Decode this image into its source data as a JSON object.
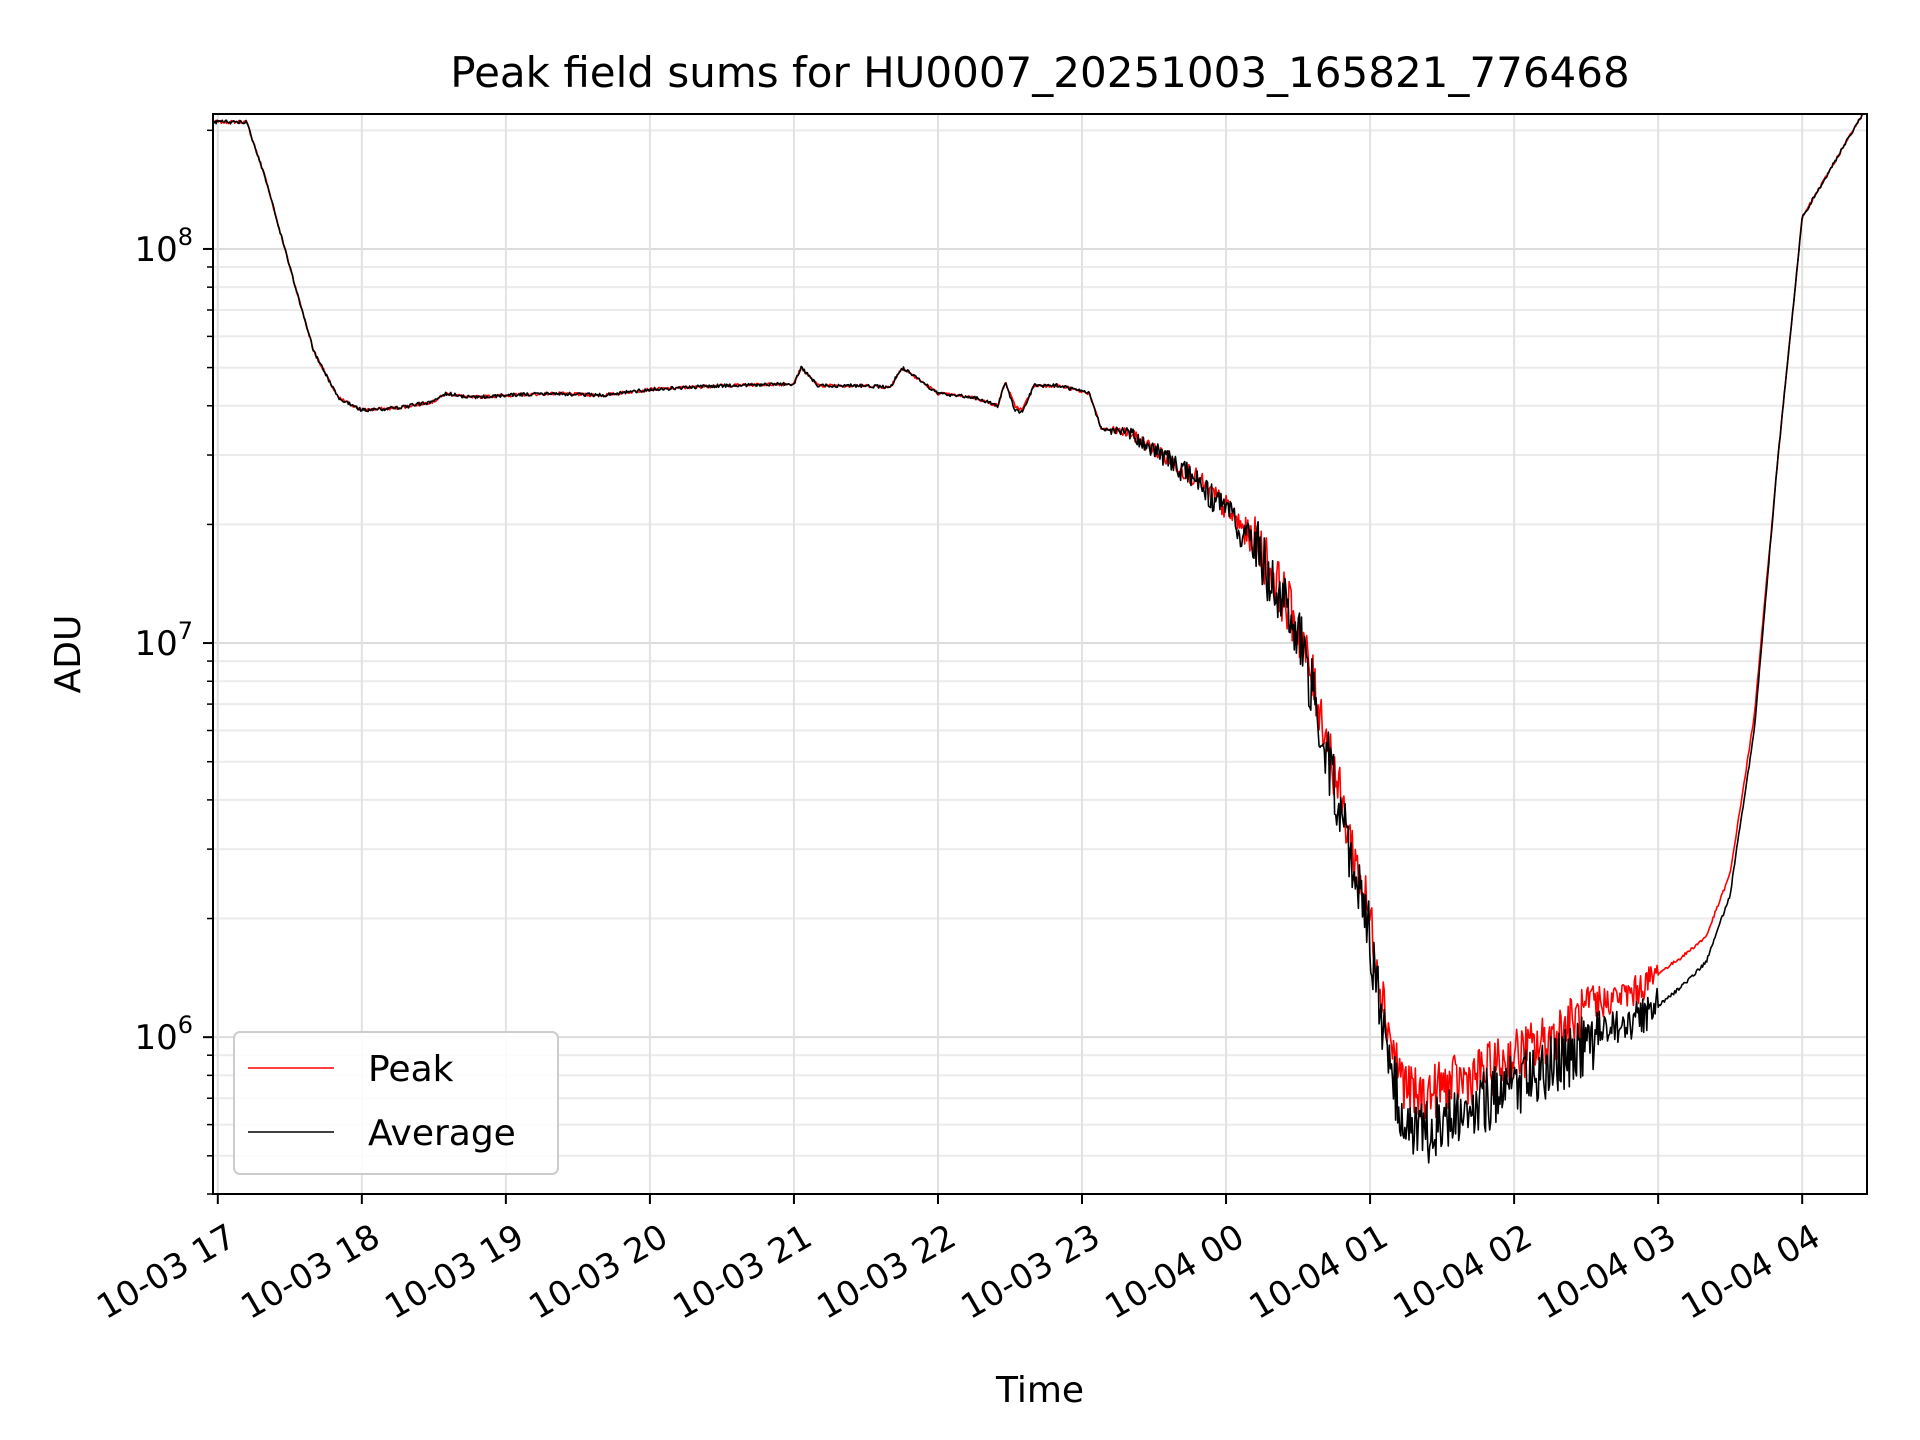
{
  "chart_data": {
    "type": "line",
    "title": "Peak field sums for HU0007_20251003_165821_776468",
    "xlabel": "Time",
    "ylabel": "ADU",
    "yscale": "log",
    "ylim": [
      400000,
      220000000
    ],
    "xlim": [
      "2025-10-03 16:58",
      "2025-10-04 04:27"
    ],
    "grid": true,
    "legend_position": "lower-left",
    "x_ticks": [
      "10-03 17",
      "10-03 18",
      "10-03 19",
      "10-03 20",
      "10-03 21",
      "10-03 22",
      "10-03 23",
      "10-04 00",
      "10-04 01",
      "10-04 02",
      "10-04 03",
      "10-04 04"
    ],
    "y_ticks": [
      {
        "base": "10",
        "exp": "6",
        "value": 1000000
      },
      {
        "base": "10",
        "exp": "7",
        "value": 10000000
      },
      {
        "base": "10",
        "exp": "8",
        "value": 100000000
      }
    ],
    "x": [
      "2025-10-03 16:58",
      "2025-10-03 17:12",
      "2025-10-03 17:20",
      "2025-10-03 17:30",
      "2025-10-03 17:40",
      "2025-10-03 17:50",
      "2025-10-03 18:00",
      "2025-10-03 18:15",
      "2025-10-03 18:30",
      "2025-10-03 18:35",
      "2025-10-03 18:45",
      "2025-10-03 19:00",
      "2025-10-03 19:20",
      "2025-10-03 19:40",
      "2025-10-03 20:00",
      "2025-10-03 20:30",
      "2025-10-03 21:00",
      "2025-10-03 21:03",
      "2025-10-03 21:10",
      "2025-10-03 21:30",
      "2025-10-03 21:40",
      "2025-10-03 21:45",
      "2025-10-03 22:00",
      "2025-10-03 22:15",
      "2025-10-03 22:25",
      "2025-10-03 22:28",
      "2025-10-03 22:32",
      "2025-10-03 22:35",
      "2025-10-03 22:40",
      "2025-10-03 22:50",
      "2025-10-03 23:03",
      "2025-10-03 23:08",
      "2025-10-03 23:20",
      "2025-10-03 23:30",
      "2025-10-03 23:45",
      "2025-10-04 00:00",
      "2025-10-04 00:15",
      "2025-10-04 00:30",
      "2025-10-04 00:40",
      "2025-10-04 00:50",
      "2025-10-04 01:00",
      "2025-10-04 01:05",
      "2025-10-04 01:10",
      "2025-10-04 01:15",
      "2025-10-04 01:20",
      "2025-10-04 01:25",
      "2025-10-04 01:30",
      "2025-10-04 01:40",
      "2025-10-04 01:50",
      "2025-10-04 02:00",
      "2025-10-04 02:10",
      "2025-10-04 02:20",
      "2025-10-04 02:30",
      "2025-10-04 02:40",
      "2025-10-04 02:50",
      "2025-10-04 03:00",
      "2025-10-04 03:10",
      "2025-10-04 03:20",
      "2025-10-04 03:30",
      "2025-10-04 03:40",
      "2025-10-04 03:50",
      "2025-10-04 04:00",
      "2025-10-04 04:27"
    ],
    "series": [
      {
        "name": "Peak",
        "color": "#ff0000",
        "values": [
          210000000,
          210000000,
          150000000,
          90000000,
          55000000,
          42000000,
          39000000,
          39500000,
          41000000,
          43000000,
          42000000,
          42500000,
          43000000,
          42500000,
          44000000,
          45000000,
          45500000,
          50000000,
          45000000,
          45000000,
          44500000,
          50000000,
          43000000,
          42000000,
          40000000,
          46000000,
          40000000,
          39000000,
          45000000,
          45000000,
          43000000,
          35000000,
          34000000,
          31000000,
          27000000,
          22000000,
          17000000,
          11000000,
          6500000,
          3500000,
          2000000,
          1300000,
          900000,
          750000,
          700000,
          720000,
          750000,
          780000,
          830000,
          900000,
          950000,
          1050000,
          1150000,
          1250000,
          1300000,
          1450000,
          1600000,
          1800000,
          2600000,
          6500000,
          30000000,
          120000000,
          230000000
        ]
      },
      {
        "name": "Average",
        "color": "#000000",
        "values": [
          210000000,
          210000000,
          150000000,
          90000000,
          55000000,
          42000000,
          39000000,
          39500000,
          41000000,
          43000000,
          42000000,
          42500000,
          43000000,
          42500000,
          44000000,
          45000000,
          45500000,
          50000000,
          45000000,
          45000000,
          44500000,
          50000000,
          43000000,
          42000000,
          40000000,
          46000000,
          39000000,
          38500000,
          45000000,
          45000000,
          43000000,
          35000000,
          34000000,
          31000000,
          26500000,
          21500000,
          16500000,
          10500000,
          6000000,
          3200000,
          1800000,
          1050000,
          750000,
          620000,
          560000,
          580000,
          620000,
          660000,
          700000,
          760000,
          800000,
          880000,
          950000,
          1050000,
          1100000,
          1200000,
          1350000,
          1550000,
          2300000,
          6000000,
          30000000,
          120000000,
          230000000
        ]
      }
    ]
  }
}
